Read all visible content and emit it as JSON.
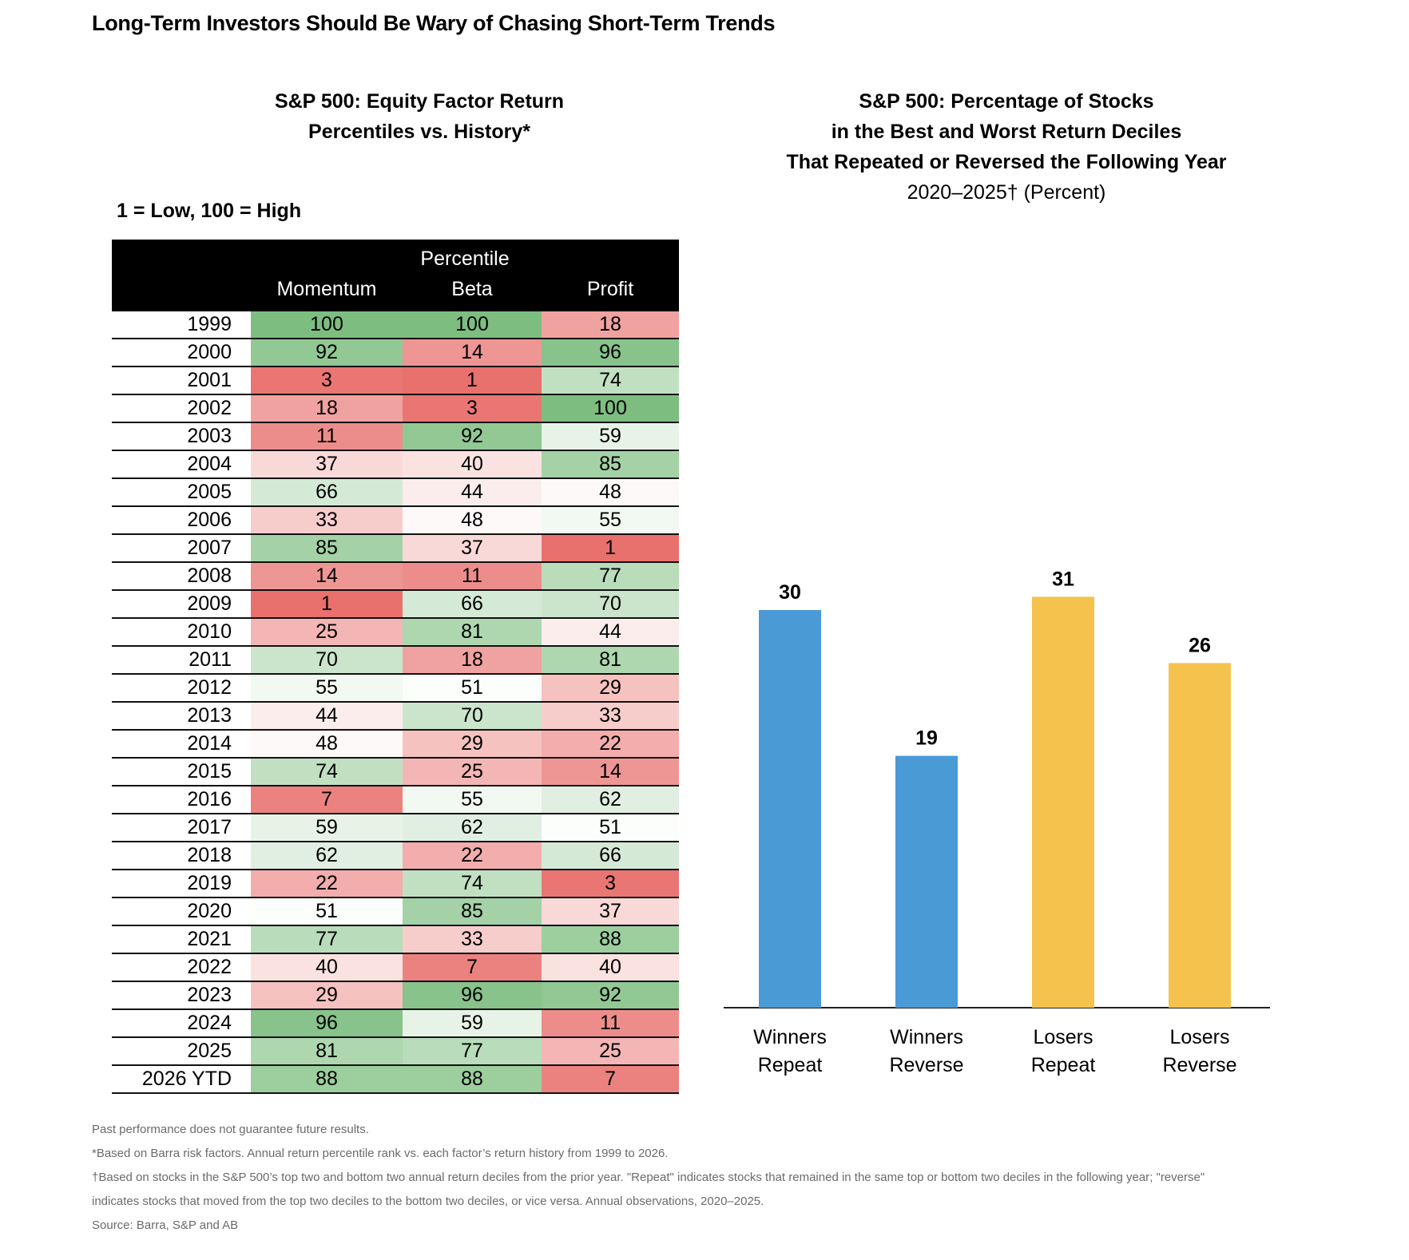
{
  "title": "Long-Term Investors Should Be Wary of Chasing Short-Term Trends",
  "left_panel": {
    "title_lines": [
      "S&P 500: Equity Factor Return",
      "Percentiles vs. History*"
    ],
    "scale_note": "1 = Low, 100 = High",
    "header_group": "Percentile",
    "columns": [
      "Momentum",
      "Beta",
      "Profit"
    ]
  },
  "right_panel": {
    "title_lines": [
      "S&P 500: Percentage of Stocks",
      "in the Best and Worst Return Deciles",
      "That Repeated or Reversed the Following Year"
    ],
    "subtitle": "2020–2025† (Percent)"
  },
  "chart_data": [
    {
      "type": "heatmap",
      "title": "S&P 500: Equity Factor Return Percentiles vs. History*",
      "columns": [
        "Momentum",
        "Beta",
        "Profit"
      ],
      "rows": [
        {
          "label": "1999",
          "values": [
            100,
            100,
            18
          ]
        },
        {
          "label": "2000",
          "values": [
            92,
            14,
            96
          ]
        },
        {
          "label": "2001",
          "values": [
            3,
            1,
            74
          ]
        },
        {
          "label": "2002",
          "values": [
            18,
            3,
            100
          ]
        },
        {
          "label": "2003",
          "values": [
            11,
            92,
            59
          ]
        },
        {
          "label": "2004",
          "values": [
            37,
            40,
            85
          ]
        },
        {
          "label": "2005",
          "values": [
            66,
            44,
            48
          ]
        },
        {
          "label": "2006",
          "values": [
            33,
            48,
            55
          ]
        },
        {
          "label": "2007",
          "values": [
            85,
            37,
            1
          ]
        },
        {
          "label": "2008",
          "values": [
            14,
            11,
            77
          ]
        },
        {
          "label": "2009",
          "values": [
            1,
            66,
            70
          ]
        },
        {
          "label": "2010",
          "values": [
            25,
            81,
            44
          ]
        },
        {
          "label": "2011",
          "values": [
            70,
            18,
            81
          ]
        },
        {
          "label": "2012",
          "values": [
            55,
            51,
            29
          ]
        },
        {
          "label": "2013",
          "values": [
            44,
            70,
            33
          ]
        },
        {
          "label": "2014",
          "values": [
            48,
            29,
            22
          ]
        },
        {
          "label": "2015",
          "values": [
            74,
            25,
            14
          ]
        },
        {
          "label": "2016",
          "values": [
            7,
            55,
            62
          ]
        },
        {
          "label": "2017",
          "values": [
            59,
            62,
            51
          ]
        },
        {
          "label": "2018",
          "values": [
            62,
            22,
            66
          ]
        },
        {
          "label": "2019",
          "values": [
            22,
            74,
            3
          ]
        },
        {
          "label": "2020",
          "values": [
            51,
            85,
            37
          ]
        },
        {
          "label": "2021",
          "values": [
            77,
            33,
            88
          ]
        },
        {
          "label": "2022",
          "values": [
            40,
            7,
            40
          ]
        },
        {
          "label": "2023",
          "values": [
            29,
            96,
            92
          ]
        },
        {
          "label": "2024",
          "values": [
            96,
            59,
            11
          ]
        },
        {
          "label": "2025",
          "values": [
            81,
            77,
            25
          ]
        },
        {
          "label": "2026 YTD",
          "values": [
            88,
            88,
            7
          ]
        }
      ],
      "color_scale": {
        "low": "#e8706d",
        "mid": "#ffffff",
        "high": "#7dbe80"
      }
    },
    {
      "type": "bar",
      "title": "S&P 500: Percentage of Stocks in the Best and Worst Return Deciles That Repeated or Reversed the Following Year",
      "categories": [
        [
          "Winners",
          "Repeat"
        ],
        [
          "Winners",
          "Reverse"
        ],
        [
          "Losers",
          "Repeat"
        ],
        [
          "Losers",
          "Reverse"
        ]
      ],
      "values": [
        30,
        19,
        31,
        26
      ],
      "colors": [
        "#4a9ad6",
        "#4a9ad6",
        "#f4c24d",
        "#f4c24d"
      ],
      "ylim": [
        0,
        35
      ],
      "grid": false
    }
  ],
  "notes": [
    "Past performance does not guarantee future results.",
    "*Based on Barra risk factors. Annual return percentile rank vs. each factor’s return history from 1999 to 2026.",
    "†Based on stocks in the S&P 500’s top two and bottom two annual return deciles from the prior year. \"Repeat\" indicates stocks that remained in the same top or bottom two deciles in the following year; \"reverse\"",
    "indicates stocks that moved from the top two deciles to the bottom two deciles, or vice versa. Annual observations, 2020–2025.",
    "Source: Barra, S&P and AB"
  ]
}
